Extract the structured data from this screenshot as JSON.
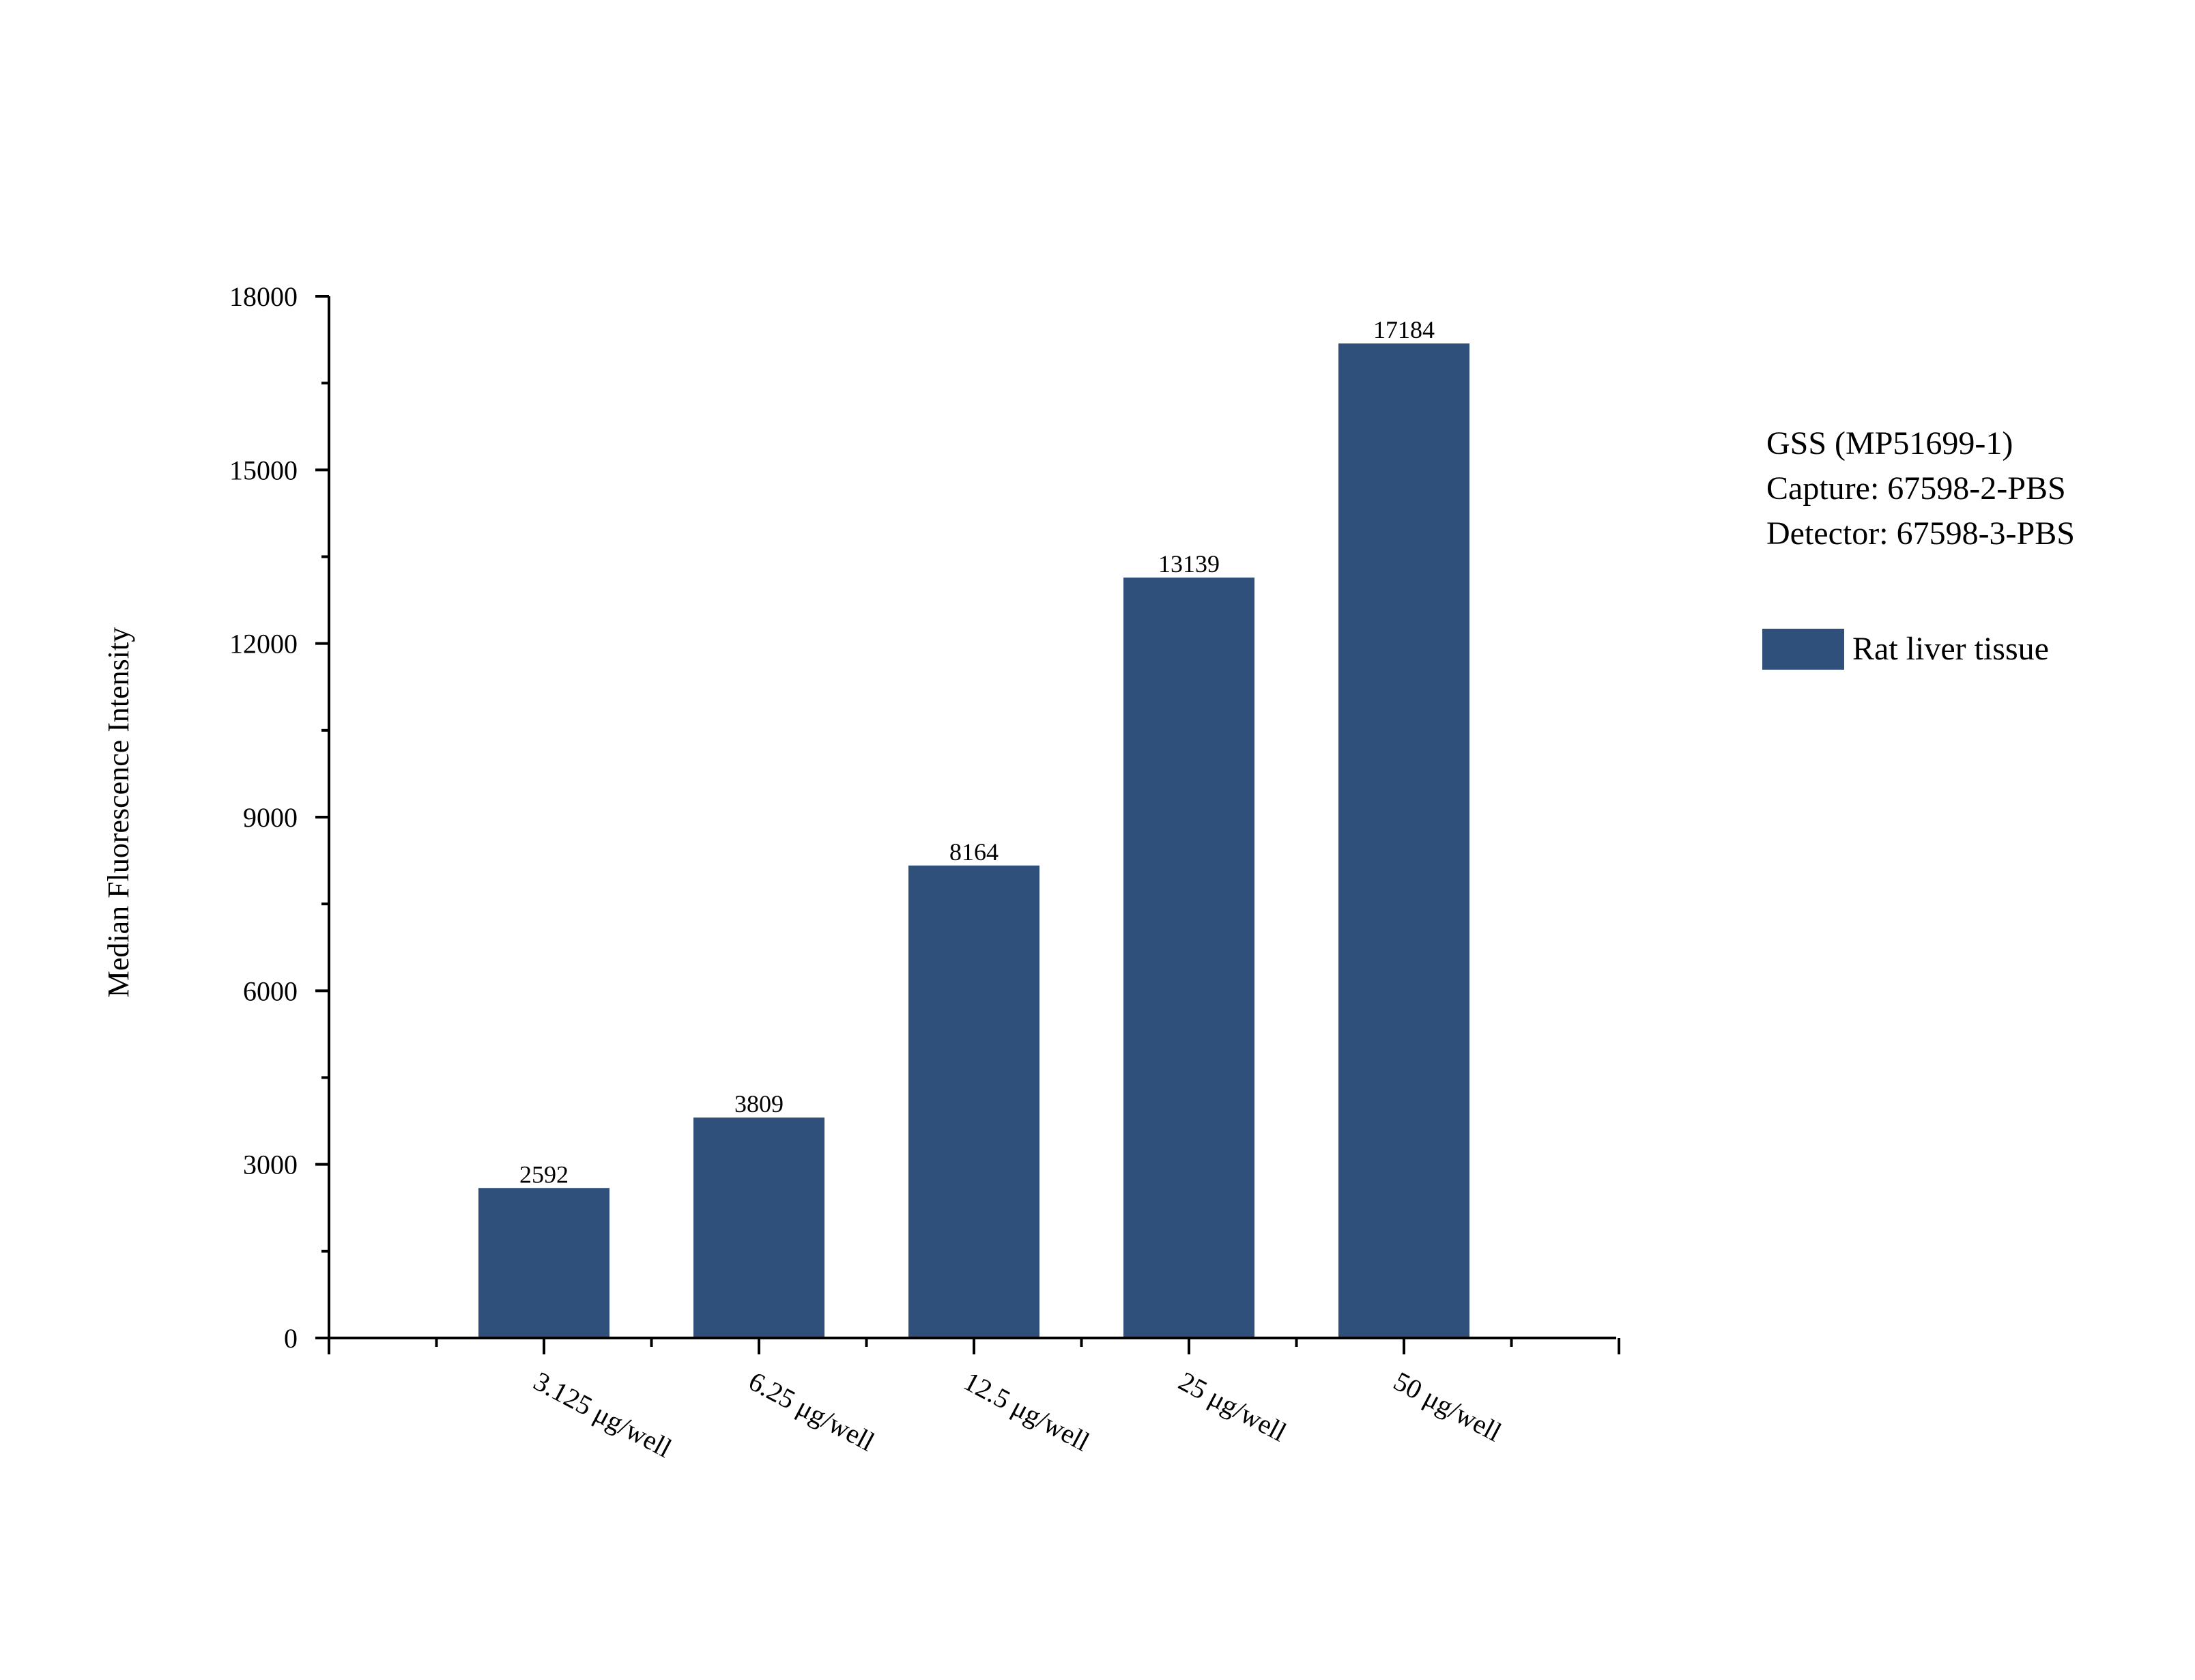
{
  "chart_data": {
    "type": "bar",
    "categories": [
      "3.125 μg/well",
      "6.25 μg/well",
      "12.5 μg/well",
      "25 μg/well",
      "50 μg/well"
    ],
    "series": [
      {
        "name": "Rat liver tissue",
        "values": [
          2592,
          3809,
          8164,
          13139,
          17184
        ]
      }
    ],
    "value_labels": [
      "2592",
      "3809",
      "8164",
      "13139",
      "17184"
    ],
    "ylabel": "Median Fluorescence Intensity",
    "xlabel": "",
    "ylim": [
      0,
      18000
    ],
    "yticks": [
      "0",
      "3000",
      "6000",
      "9000",
      "12000",
      "15000",
      "18000"
    ],
    "grid": false,
    "legend_position": "right",
    "bar_color": "#30507c",
    "annotation_lines": [
      "GSS (MP51699-1)",
      "Capture: 67598-2-PBS",
      "Detector: 67598-3-PBS"
    ]
  }
}
